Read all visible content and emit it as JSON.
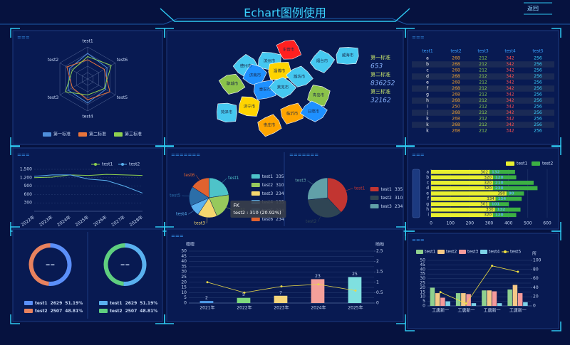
{
  "header": {
    "title": "Echart图例使用",
    "back": "返回"
  },
  "table": {
    "panel_title": "===",
    "columns": [
      "test1",
      "test2",
      "test3",
      "test4",
      "test5"
    ],
    "rows": [
      [
        "a",
        268,
        212,
        342,
        256
      ],
      [
        "b",
        268,
        212,
        342,
        256
      ],
      [
        "c",
        268,
        212,
        342,
        256
      ],
      [
        "d",
        268,
        212,
        342,
        256
      ],
      [
        "e",
        268,
        212,
        342,
        256
      ],
      [
        "f",
        268,
        212,
        342,
        256
      ],
      [
        "g",
        268,
        212,
        342,
        256
      ],
      [
        "h",
        268,
        212,
        342,
        256
      ],
      [
        "i",
        250,
        212,
        342,
        256
      ],
      [
        "j",
        268,
        212,
        342,
        256
      ],
      [
        "k",
        268,
        212,
        342,
        256
      ],
      [
        "k",
        268,
        212,
        342,
        256
      ],
      [
        "k",
        268,
        212,
        342,
        256
      ]
    ]
  },
  "chart_data": [
    {
      "type": "radar",
      "panel_title": "===",
      "indicators": [
        "test1",
        "test2",
        "test3",
        "test4",
        "test5",
        "test6"
      ],
      "rlim": [
        0,
        100
      ],
      "series": [
        {
          "name": "第一标准",
          "color": "#4f8fdb",
          "values": [
            80,
            65,
            70,
            75,
            65,
            70
          ]
        },
        {
          "name": "第二标准",
          "color": "#e8743b",
          "values": [
            60,
            75,
            55,
            65,
            80,
            60
          ]
        },
        {
          "name": "第三标准",
          "color": "#8fd14f",
          "values": [
            70,
            55,
            80,
            50,
            60,
            85
          ]
        }
      ]
    },
    {
      "type": "map",
      "regions": [
        {
          "name": "德州市",
          "color": "#45c8f0"
        },
        {
          "name": "滨州市",
          "color": "#45c8f0"
        },
        {
          "name": "东营市",
          "color": "#ff2020"
        },
        {
          "name": "烟台市",
          "color": "#45c8f0"
        },
        {
          "name": "威海市",
          "color": "#45c8f0"
        },
        {
          "name": "聊城市",
          "color": "#8bc34a"
        },
        {
          "name": "济南市",
          "color": "#1e90ff"
        },
        {
          "name": "淄博市",
          "color": "#ffd400"
        },
        {
          "name": "潍坊市",
          "color": "#45c8f0"
        },
        {
          "name": "青岛市",
          "color": "#8bc34a"
        },
        {
          "name": "泰安市",
          "color": "#1e90ff"
        },
        {
          "name": "莱芜市",
          "color": "#45c8f0"
        },
        {
          "name": "济宁市",
          "color": "#ffd400"
        },
        {
          "name": "临沂市",
          "color": "#ffa500"
        },
        {
          "name": "日照市",
          "color": "#1e90ff"
        },
        {
          "name": "菏泽市",
          "color": "#45c8f0"
        },
        {
          "name": "枣庄市",
          "color": "#ffa500"
        }
      ],
      "series": [
        {
          "name": "第一标准",
          "value": 653
        },
        {
          "name": "第二标准",
          "value": 836252
        },
        {
          "name": "第三标准",
          "value": 32162
        }
      ]
    },
    {
      "type": "line",
      "panel_title": "===",
      "categories": [
        "2022年",
        "2023年",
        "2024年",
        "2025年",
        "2026年",
        "2027年",
        "2028年"
      ],
      "ylim": [
        0,
        1500
      ],
      "yticks": [
        300,
        600,
        900,
        {
          "value": 1200,
          "label": "1,200"
        },
        {
          "value": 1500,
          "label": "1,500"
        }
      ],
      "grid": true,
      "series": [
        {
          "name": "test1",
          "color": "#8fd14f",
          "values": [
            1200,
            1220,
            1300,
            1280,
            1320,
            1300,
            1280
          ]
        },
        {
          "name": "test2",
          "color": "#5ab1ef",
          "values": [
            1250,
            1300,
            1300,
            1150,
            1100,
            900,
            650
          ]
        }
      ]
    },
    {
      "type": "pie",
      "panel_title": "=======",
      "categories": [
        "test1",
        "test2",
        "test3",
        "test4",
        "test5",
        "test6"
      ],
      "values": [
        335,
        310,
        234,
        135,
        234,
        234
      ],
      "colors": [
        "#4ec3c9",
        "#97c95c",
        "#f5d76e",
        "#5ab1ef",
        "#2b6ea8",
        "#e0622f"
      ],
      "tooltip": {
        "title": "FK",
        "text": "test2 : 310 (20.92%)"
      }
    },
    {
      "type": "pie",
      "panel_title": "=======",
      "categories": [
        "test1",
        "test2",
        "test3"
      ],
      "values": [
        335,
        310,
        234
      ],
      "colors": [
        "#c23531",
        "#2f4554",
        "#61a0a8"
      ]
    },
    {
      "type": "bar",
      "panel_title": "===",
      "horizontal": true,
      "stacked": true,
      "categories": [
        "a",
        "b",
        "c",
        "d",
        "e",
        "f",
        "g",
        "h",
        "i"
      ],
      "xlim": [
        0,
        600
      ],
      "xticks": [
        0,
        100,
        200,
        300,
        400,
        500,
        600
      ],
      "series": [
        {
          "name": "test1",
          "color": "#e8f030",
          "values": [
            302,
            320,
            320,
            320,
            390,
            334,
            301,
            330,
            320
          ]
        },
        {
          "name": "test2",
          "color": "#3cb043",
          "values": [
            132,
            120,
            210,
            230,
            90,
            134,
            101,
            132,
            120
          ]
        }
      ]
    },
    {
      "type": "donut",
      "center": "==",
      "categories": [
        "test1",
        "test2"
      ],
      "values": [
        2629,
        2507
      ],
      "value_labels": [
        "51.19%",
        "48.81%"
      ],
      "colors": [
        "#5b8ff9",
        "#e8825e"
      ]
    },
    {
      "type": "donut",
      "center": "==",
      "categories": [
        "test1",
        "test2"
      ],
      "values": [
        2629,
        2507
      ],
      "value_labels": [
        "51.19%",
        "48.81%"
      ],
      "colors": [
        "#5ab1ef",
        "#5fcf7f"
      ]
    },
    {
      "type": "bar",
      "panel_title": "===",
      "categories": [
        "2021年",
        "2022年",
        "2023年",
        "2024年",
        "2025年"
      ],
      "ylabel": "嗯嗯",
      "y2label": "呦呦",
      "ylim": [
        0,
        50
      ],
      "yticks": [
        0,
        5,
        10,
        15,
        20,
        25,
        30,
        35,
        40,
        45,
        50
      ],
      "y2lim": [
        0,
        2.5
      ],
      "y2ticks": [
        0,
        0.5,
        1,
        1.5,
        2,
        2.5
      ],
      "series": [
        {
          "type": "bar",
          "labels": true,
          "colors": [
            "#4f9be8",
            "#7ed97e",
            "#f5d57a",
            "#f4a09a",
            "#7fe0e0"
          ],
          "values": [
            2,
            5,
            7,
            23,
            25
          ]
        },
        {
          "type": "line",
          "axis": "y2",
          "color": "#e8d84a",
          "values": [
            1.0,
            0.5,
            0.8,
            0.9,
            0.6
          ]
        }
      ]
    },
    {
      "type": "bar",
      "panel_title": "===",
      "categories": [
        "工唐新一",
        "工唐新一",
        "工唐新一",
        "工唐新一"
      ],
      "y2label": "所",
      "ylim": [
        0,
        50
      ],
      "yticks": [
        0,
        5,
        10,
        15,
        20,
        25,
        30,
        35,
        40,
        45,
        50
      ],
      "y2lim": [
        0,
        100
      ],
      "y2ticks": [
        0,
        20,
        40,
        60,
        80,
        100
      ],
      "series": [
        {
          "name": "test1",
          "type": "bar",
          "color": "#8fd18f",
          "values": [
            20,
            14,
            17,
            18
          ]
        },
        {
          "name": "test2",
          "type": "bar",
          "color": "#f5c987",
          "values": [
            14,
            14,
            17,
            23
          ]
        },
        {
          "name": "test3",
          "type": "bar",
          "color": "#f59a9a",
          "values": [
            9,
            13,
            16,
            14
          ]
        },
        {
          "name": "test4",
          "type": "bar",
          "color": "#7dd3e8",
          "values": [
            5,
            3,
            3,
            4
          ]
        },
        {
          "name": "test5",
          "type": "line",
          "axis": "y2",
          "color": "#f0e040",
          "values": [
            30,
            5,
            88,
            75
          ]
        }
      ]
    }
  ]
}
